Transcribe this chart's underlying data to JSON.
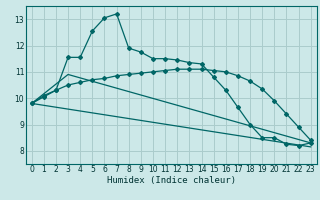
{
  "xlabel": "Humidex (Indice chaleur)",
  "bg_color": "#cce8e8",
  "grid_color": "#aacccc",
  "line_color": "#006666",
  "xlim": [
    -0.5,
    23.5
  ],
  "ylim": [
    7.5,
    13.5
  ],
  "yticks": [
    8,
    9,
    10,
    11,
    12,
    13
  ],
  "xticks": [
    0,
    1,
    2,
    3,
    4,
    5,
    6,
    7,
    8,
    9,
    10,
    11,
    12,
    13,
    14,
    15,
    16,
    17,
    18,
    19,
    20,
    21,
    22,
    23
  ],
  "line1_x": [
    0,
    1,
    2,
    3,
    4,
    5,
    6,
    7,
    8,
    9,
    10,
    11,
    12,
    13,
    14,
    15,
    16,
    17,
    18,
    19,
    20,
    21,
    22,
    23
  ],
  "line1_y": [
    9.8,
    10.1,
    10.3,
    10.5,
    10.6,
    10.7,
    10.75,
    10.85,
    10.9,
    10.95,
    11.0,
    11.05,
    11.1,
    11.1,
    11.1,
    11.05,
    11.0,
    10.85,
    10.65,
    10.35,
    9.9,
    9.4,
    8.9,
    8.4
  ],
  "line2_x": [
    0,
    1,
    2,
    3,
    4,
    5,
    6,
    7,
    8,
    9,
    10,
    11,
    12,
    13,
    14,
    15,
    16,
    17,
    18,
    19,
    20,
    21,
    22,
    23
  ],
  "line2_y": [
    9.8,
    10.05,
    10.3,
    11.55,
    11.55,
    12.55,
    13.05,
    13.2,
    11.9,
    11.75,
    11.5,
    11.5,
    11.45,
    11.35,
    11.3,
    10.8,
    10.3,
    9.65,
    9.0,
    8.5,
    8.5,
    8.25,
    8.2,
    8.3
  ],
  "line3_x": [
    0,
    3,
    23
  ],
  "line3_y": [
    9.8,
    10.9,
    8.3
  ],
  "line4_x": [
    0,
    23
  ],
  "line4_y": [
    9.8,
    8.15
  ]
}
